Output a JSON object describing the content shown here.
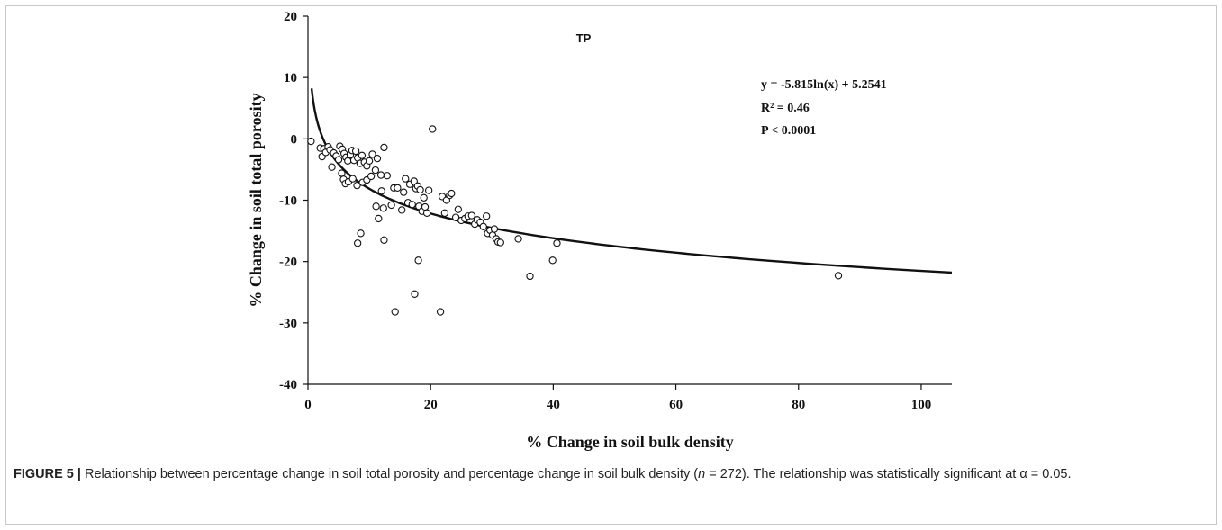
{
  "chart_data": {
    "type": "scatter",
    "title": "TP",
    "xlabel": "% Change in soil bulk density",
    "ylabel": "% Change in soil total porosity",
    "xlim": [
      0,
      105
    ],
    "ylim": [
      -40,
      20
    ],
    "x_ticks": [
      0,
      20,
      40,
      60,
      80,
      100
    ],
    "y_ticks": [
      20,
      10,
      0,
      -10,
      -20,
      -30,
      -40
    ],
    "x_tick_labels": [
      "0",
      "20",
      "40",
      "60",
      "80",
      "100"
    ],
    "y_tick_labels": [
      "20",
      "10",
      "0",
      "-10",
      "-20",
      "-30",
      "-40"
    ],
    "grid": false,
    "annotations": [
      "y = -5.815ln(x) + 5.2541",
      "R² = 0.46",
      "P < 0.0001"
    ],
    "fit": {
      "model": "logarithmic",
      "a": -5.815,
      "b": 5.2541,
      "x_range": [
        0.6,
        105
      ]
    },
    "points": [
      [
        0.5,
        -0.4
      ],
      [
        2.0,
        -1.5
      ],
      [
        2.3,
        -2.9
      ],
      [
        2.6,
        -1.6
      ],
      [
        2.9,
        -2.2
      ],
      [
        3.3,
        -1.3
      ],
      [
        3.6,
        -1.8
      ],
      [
        3.9,
        -4.6
      ],
      [
        4.2,
        -2.3
      ],
      [
        4.6,
        -2.8
      ],
      [
        5.0,
        -3.4
      ],
      [
        5.2,
        -1.2
      ],
      [
        5.6,
        -1.7
      ],
      [
        5.9,
        -2.4
      ],
      [
        6.2,
        -3.0
      ],
      [
        6.5,
        -3.6
      ],
      [
        6.9,
        -2.6
      ],
      [
        7.2,
        -1.9
      ],
      [
        7.5,
        -3.5
      ],
      [
        7.8,
        -2.0
      ],
      [
        8.1,
        -3.1
      ],
      [
        8.5,
        -4.0
      ],
      [
        8.8,
        -2.7
      ],
      [
        9.2,
        -3.8
      ],
      [
        9.6,
        -4.4
      ],
      [
        10.0,
        -3.6
      ],
      [
        10.5,
        -2.5
      ],
      [
        11.0,
        -5.1
      ],
      [
        11.3,
        -3.2
      ],
      [
        11.9,
        -5.9
      ],
      [
        12.4,
        -1.4
      ],
      [
        12.9,
        -6.0
      ],
      [
        5.5,
        -5.6
      ],
      [
        5.8,
        -6.6
      ],
      [
        6.1,
        -7.3
      ],
      [
        6.6,
        -7.0
      ],
      [
        7.3,
        -6.5
      ],
      [
        8.0,
        -7.6
      ],
      [
        8.9,
        -7.1
      ],
      [
        9.6,
        -6.7
      ],
      [
        10.3,
        -6.1
      ],
      [
        11.1,
        -11.0
      ],
      [
        11.5,
        -13.0
      ],
      [
        12.0,
        -8.5
      ],
      [
        12.3,
        -11.3
      ],
      [
        13.6,
        -10.8
      ],
      [
        14.0,
        -8.0
      ],
      [
        14.6,
        -8.0
      ],
      [
        15.3,
        -11.6
      ],
      [
        15.6,
        -8.7
      ],
      [
        15.9,
        -6.5
      ],
      [
        16.3,
        -10.4
      ],
      [
        16.6,
        -7.4
      ],
      [
        17.0,
        -10.7
      ],
      [
        17.3,
        -6.9
      ],
      [
        17.6,
        -8.1
      ],
      [
        17.9,
        -7.7
      ],
      [
        18.1,
        -11.0
      ],
      [
        18.3,
        -8.3
      ],
      [
        18.6,
        -11.8
      ],
      [
        18.9,
        -9.6
      ],
      [
        19.1,
        -11.1
      ],
      [
        19.4,
        -12.1
      ],
      [
        19.7,
        -8.4
      ],
      [
        20.3,
        1.6
      ],
      [
        8.6,
        -15.4
      ],
      [
        8.1,
        -17.0
      ],
      [
        12.4,
        -16.5
      ],
      [
        14.2,
        -28.2
      ],
      [
        17.4,
        -25.3
      ],
      [
        18.0,
        -19.8
      ],
      [
        21.6,
        -28.2
      ],
      [
        21.9,
        -9.4
      ],
      [
        22.3,
        -12.1
      ],
      [
        22.6,
        -10.0
      ],
      [
        23.1,
        -9.2
      ],
      [
        23.4,
        -8.9
      ],
      [
        24.1,
        -12.8
      ],
      [
        24.5,
        -11.5
      ],
      [
        25.0,
        -13.3
      ],
      [
        25.6,
        -13.0
      ],
      [
        26.1,
        -12.6
      ],
      [
        26.7,
        -12.5
      ],
      [
        27.2,
        -13.9
      ],
      [
        27.6,
        -13.2
      ],
      [
        28.1,
        -13.6
      ],
      [
        28.6,
        -14.3
      ],
      [
        29.1,
        -12.6
      ],
      [
        29.3,
        -15.4
      ],
      [
        29.7,
        -14.9
      ],
      [
        30.1,
        -15.7
      ],
      [
        30.4,
        -14.7
      ],
      [
        30.7,
        -16.3
      ],
      [
        31.0,
        -16.8
      ],
      [
        31.4,
        -16.9
      ],
      [
        34.3,
        -16.3
      ],
      [
        36.2,
        -22.4
      ],
      [
        39.9,
        -19.8
      ],
      [
        40.6,
        -17.0
      ],
      [
        86.5,
        -22.3
      ]
    ]
  },
  "caption": {
    "label": "FIGURE 5 |",
    "text_before_n": " Relationship between percentage change in soil total porosity and percentage change in soil bulk density (",
    "n_symbol": "n",
    "text_after_n": " = 272). The relationship was statistically significant at α = 0.05."
  }
}
